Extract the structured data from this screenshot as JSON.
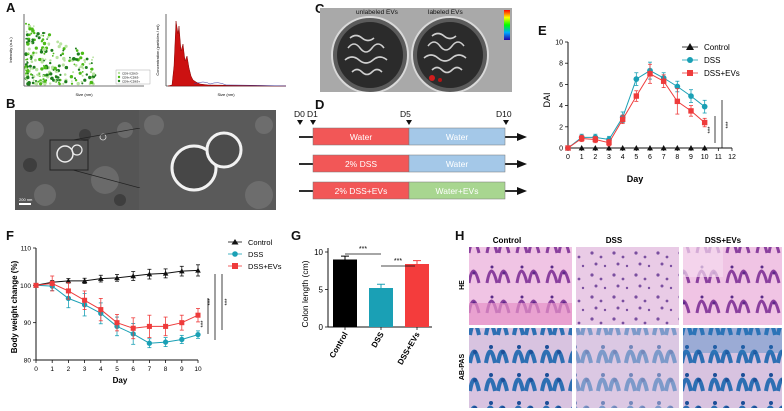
{
  "panels": {
    "A": "A",
    "B": "B",
    "C": "C",
    "D": "D",
    "E": "E",
    "F": "F",
    "G": "G",
    "H": "H"
  },
  "panel_a": {
    "scatter": {
      "ylabel": "Intensity (a.u.)",
      "xlabel": "Size (nm)",
      "legend": [
        "CD9-/CD63-",
        "CD9+/CD63-",
        "CD9+/CD63+"
      ],
      "colors": [
        "#b8e3a0",
        "#4cbb17",
        "#1e7d1e"
      ]
    },
    "histogram": {
      "ylabel": "Concentration (particles / ml)",
      "xlabel": "Size (nm)",
      "color": "#cc1111"
    }
  },
  "panel_b": {
    "scale_bar": "200 nm"
  },
  "panel_c": {
    "left_label": "unlabeled EVs",
    "right_label": "labeled EVs"
  },
  "panel_d": {
    "days": [
      "D0",
      "D1",
      "D5",
      "D10"
    ],
    "rows": [
      {
        "first": "Water",
        "second": "Water",
        "first_color": "#f25757",
        "second_color": "#a4c8e8"
      },
      {
        "first": "2% DSS",
        "second": "Water",
        "first_color": "#f25757",
        "second_color": "#a4c8e8"
      },
      {
        "first": "2% DSS+EVs",
        "second": "Water+EVs",
        "first_color": "#f25757",
        "second_color": "#a8d690"
      }
    ]
  },
  "colors": {
    "control": "#111111",
    "dss": "#1aa0b5",
    "dss_evs": "#ee3b3b"
  },
  "chart_data": [
    {
      "id": "E",
      "type": "line",
      "ylabel": "DAI",
      "xlabel": "Day",
      "xlim": [
        0,
        12
      ],
      "ylim": [
        0,
        10
      ],
      "xticks": [
        0,
        1,
        2,
        3,
        4,
        5,
        6,
        7,
        8,
        9,
        10,
        11,
        12
      ],
      "yticks": [
        0,
        2,
        4,
        6,
        8,
        10
      ],
      "x": [
        0,
        1,
        2,
        3,
        4,
        5,
        6,
        7,
        8,
        9,
        10
      ],
      "series": [
        {
          "name": "Control",
          "values": [
            0,
            0,
            0,
            0,
            0,
            0,
            0,
            0,
            0,
            0,
            0
          ]
        },
        {
          "name": "DSS",
          "values": [
            0,
            1.0,
            1.0,
            0.8,
            2.9,
            6.5,
            7.3,
            6.6,
            5.8,
            4.9,
            3.9
          ]
        },
        {
          "name": "DSS+EVs",
          "values": [
            0,
            0.9,
            0.8,
            0.5,
            2.7,
            4.9,
            7.0,
            6.3,
            4.4,
            3.5,
            2.4
          ]
        }
      ],
      "errors": [
        [
          0,
          0,
          0,
          0,
          0,
          0,
          0,
          0,
          0,
          0,
          0
        ],
        [
          0,
          0.3,
          0.3,
          0.3,
          0.5,
          0.6,
          0.8,
          0.5,
          0.5,
          0.6,
          0.6
        ],
        [
          0,
          0.3,
          0.3,
          0.3,
          0.4,
          0.5,
          0.9,
          0.6,
          1.2,
          0.5,
          0.4
        ]
      ],
      "significance": [
        "***",
        "***"
      ],
      "legend": [
        "Control",
        "DSS",
        "DSS+EVs"
      ]
    },
    {
      "id": "F",
      "type": "line",
      "ylabel": "Body weight change (%)",
      "xlabel": "Day",
      "xlim": [
        0,
        10
      ],
      "ylim": [
        80,
        110
      ],
      "xticks": [
        0,
        1,
        2,
        3,
        4,
        5,
        6,
        7,
        8,
        9,
        10
      ],
      "yticks": [
        80,
        90,
        100,
        110
      ],
      "x": [
        0,
        1,
        2,
        3,
        4,
        5,
        6,
        7,
        8,
        9,
        10
      ],
      "series": [
        {
          "name": "Control",
          "values": [
            100,
            100.8,
            101.2,
            101.2,
            101.8,
            102,
            102.5,
            103,
            103.2,
            103.8,
            104
          ]
        },
        {
          "name": "DSS",
          "values": [
            100,
            99.8,
            96.5,
            94.8,
            92.5,
            89,
            87,
            84.5,
            84.8,
            85.5,
            86.8
          ]
        },
        {
          "name": "DSS+EVs",
          "values": [
            100,
            100.5,
            98.5,
            96,
            93.5,
            90,
            88.5,
            89,
            89,
            90,
            92
          ]
        }
      ],
      "errors": [
        [
          0,
          0.5,
          0.6,
          0.7,
          0.9,
          0.9,
          1.2,
          1.3,
          1.2,
          1.3,
          1.5
        ],
        [
          0,
          1.2,
          2.5,
          3.0,
          2.8,
          2.5,
          2.8,
          1.2,
          1.2,
          1.1,
          1.0
        ],
        [
          0,
          2.0,
          2.2,
          2.5,
          3.0,
          2.2,
          2.8,
          3.0,
          2.5,
          2.0,
          1.8
        ]
      ],
      "significance": [
        "***",
        "***",
        "***"
      ],
      "legend": [
        "Control",
        "DSS",
        "DSS+EVs"
      ]
    },
    {
      "id": "G",
      "type": "bar",
      "ylabel": "Colon length (cm)",
      "categories": [
        "Control",
        "DSS",
        "DSS+EVs"
      ],
      "values": [
        9.0,
        5.2,
        8.4
      ],
      "errors": [
        0.45,
        0.5,
        0.45
      ],
      "colors": [
        "#000000",
        "#1aa0b5",
        "#f43c3c"
      ],
      "ylim": [
        0,
        10
      ],
      "yticks": [
        0,
        5,
        10
      ],
      "significance": [
        "***",
        "***"
      ]
    }
  ],
  "panel_h": {
    "columns": [
      "Control",
      "DSS",
      "DSS+EVs"
    ],
    "rows": [
      "HE",
      "AB-PAS"
    ]
  }
}
